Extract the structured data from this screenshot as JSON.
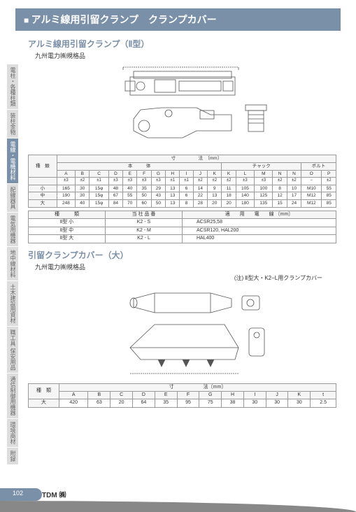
{
  "title": "アルミ線用引留クランプ　クランプカバー",
  "tabs": [
    "電柱・各種柱類",
    "装柱金物",
    "電線・電機材料",
    "配線器具",
    "電気用機器",
    "地中線材料",
    "土木建設用資材",
    "職工具 保安用品",
    "通信制御用機器",
    "環境商材",
    "附録"
  ],
  "tab_active_index": 2,
  "section1": {
    "title": "アルミ線用引留クランプ（Ⅱ型）",
    "sub": "九州電力㈱規格品",
    "table1": {
      "unit_header": "寸　　　　　法　〔mm〕",
      "groups": [
        "本　　　体",
        "チャック",
        "ボルト"
      ],
      "cols": [
        "A",
        "B",
        "C",
        "D",
        "E",
        "F",
        "G",
        "H",
        "I",
        "J",
        "K",
        "K",
        "L",
        "M",
        "N",
        "N",
        "O",
        "P"
      ],
      "sub": [
        "±3",
        "±2",
        "±1",
        "±3",
        "±3",
        "±3",
        "±3",
        "±1",
        "±1",
        "±2",
        "±2",
        "±2",
        "±3",
        "±3",
        "±2",
        "±2",
        "−",
        "±2"
      ],
      "rows": [
        {
          "label": "小",
          "v": [
            "165",
            "30",
            "15φ",
            "48",
            "40",
            "35",
            "29",
            "13",
            "6",
            "14",
            "9",
            "11",
            "105",
            "100",
            "8",
            "10",
            "M10",
            "55"
          ]
        },
        {
          "label": "中",
          "v": [
            "190",
            "30",
            "15φ",
            "67",
            "55",
            "50",
            "43",
            "13",
            "6",
            "22",
            "13",
            "18",
            "140",
            "125",
            "12",
            "17",
            "M12",
            "85"
          ]
        },
        {
          "label": "大",
          "v": [
            "248",
            "40",
            "15φ",
            "84",
            "70",
            "60",
            "50",
            "13",
            "8",
            "28",
            "20",
            "20",
            "180",
            "135",
            "15",
            "24",
            "M12",
            "85"
          ]
        }
      ]
    },
    "table2": {
      "headers": [
        "種　　　類",
        "当 社 品 番",
        "適　　用　　電　　線 〔mm〕"
      ],
      "rows": [
        [
          "Ⅱ型 小",
          "K2 - S",
          "ACSR25,58"
        ],
        [
          "Ⅱ型 中",
          "K2 - M",
          "ACSR120,  HAL200"
        ],
        [
          "Ⅱ型 大",
          "K2 - L",
          "HAL400"
        ]
      ]
    }
  },
  "section2": {
    "title": "引留クランプカバー（大）",
    "sub": "九州電力㈱規格品",
    "note": "(注) Ⅱ型大・K2−L用クランプカバー",
    "table": {
      "unit_header": "寸　　　　　　法〔mm〕",
      "cols": [
        "A",
        "B",
        "C",
        "D",
        "E",
        "F",
        "G",
        "H",
        "I",
        "J",
        "K",
        "t"
      ],
      "rows": [
        {
          "label": "大",
          "v": [
            "420",
            "63",
            "20",
            "64",
            "35",
            "95",
            "75",
            "38",
            "30",
            "30",
            "30",
            "2.5"
          ]
        }
      ]
    }
  },
  "footer": {
    "page": "102",
    "text": "TDM ㈱"
  },
  "colors": {
    "accent": "#7a8fa8",
    "grid": "#999"
  }
}
